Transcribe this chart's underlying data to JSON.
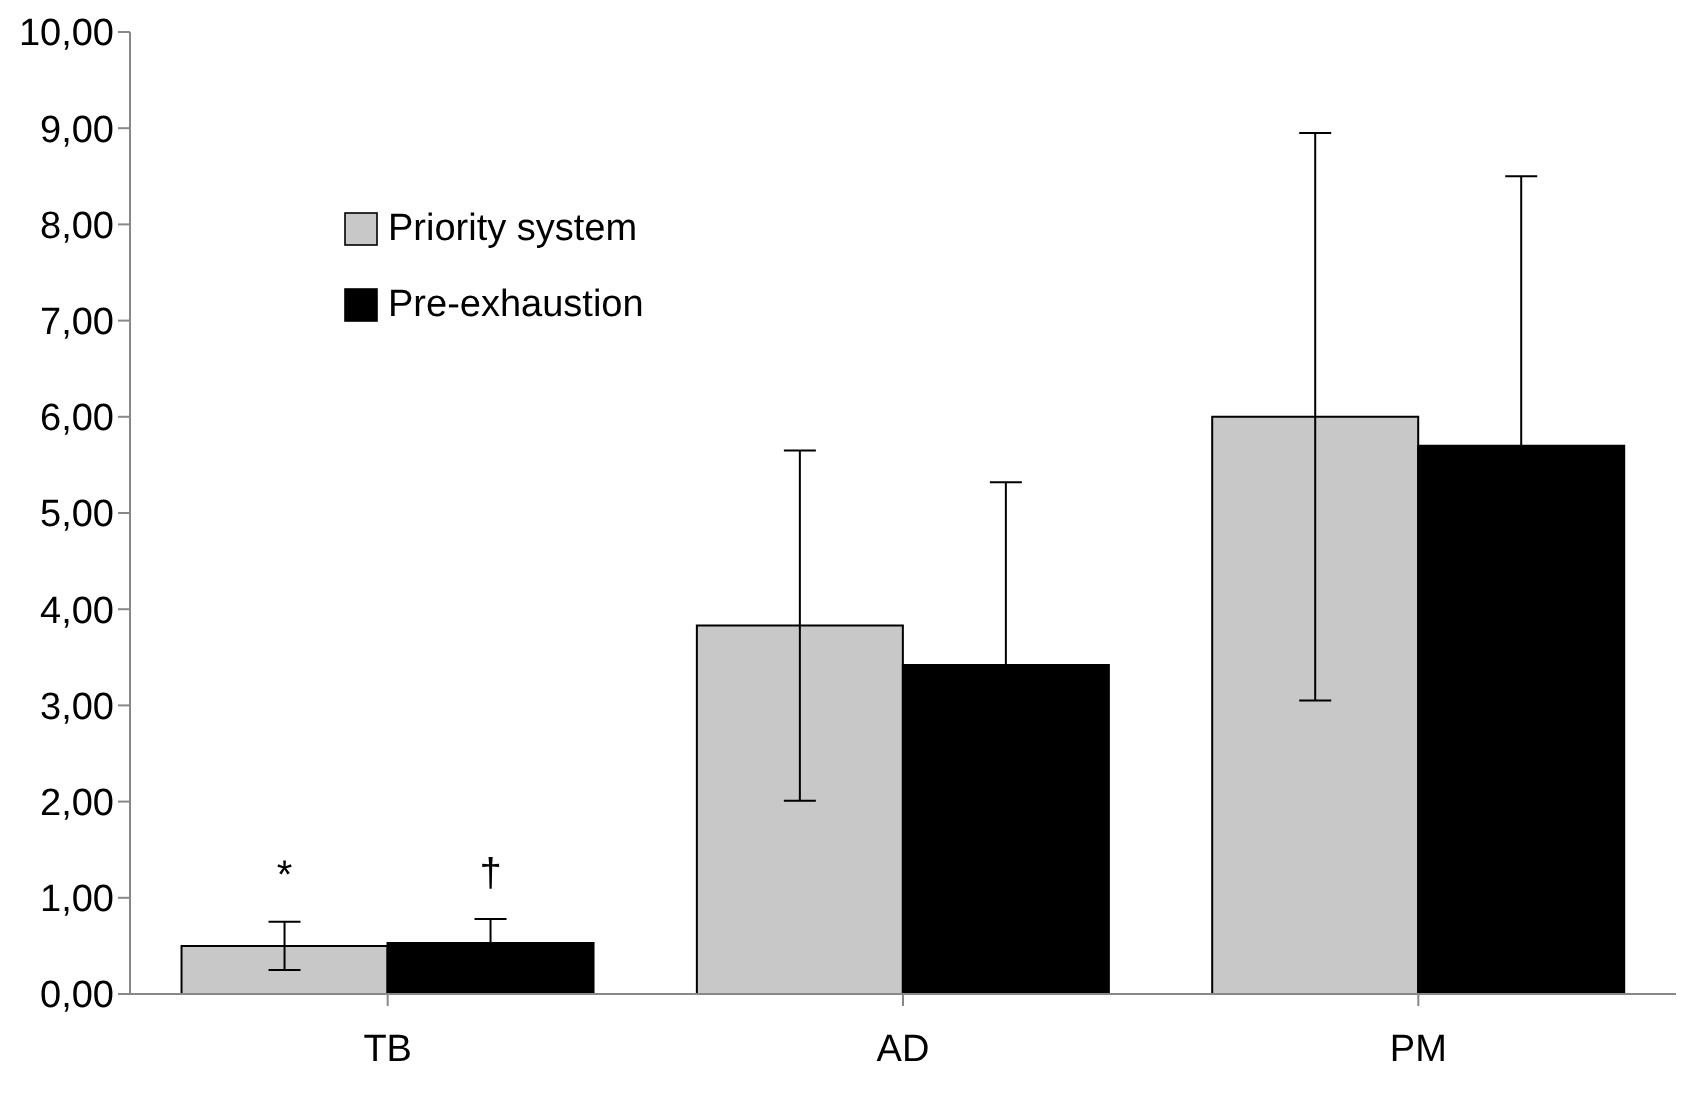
{
  "chart_data": {
    "type": "bar",
    "categories": [
      "TB",
      "AD",
      "PM"
    ],
    "series": [
      {
        "name": "Priority system",
        "color": "#c8c8c8",
        "values": [
          0.5,
          3.83,
          6.0
        ],
        "errors": [
          0.25,
          1.82,
          2.95
        ]
      },
      {
        "name": "Pre-exhaustion",
        "color": "#000000",
        "values": [
          0.53,
          3.42,
          5.7
        ],
        "errors": [
          0.25,
          1.9,
          2.8
        ]
      }
    ],
    "ylim": [
      0,
      10
    ],
    "yticks": [
      {
        "value": 0,
        "label": "0,00"
      },
      {
        "value": 1,
        "label": "1,00"
      },
      {
        "value": 2,
        "label": "2,00"
      },
      {
        "value": 3,
        "label": "3,00"
      },
      {
        "value": 4,
        "label": "4,00"
      },
      {
        "value": 5,
        "label": "5,00"
      },
      {
        "value": 6,
        "label": "6,00"
      },
      {
        "value": 7,
        "label": "7,00"
      },
      {
        "value": 8,
        "label": "8,00"
      },
      {
        "value": 9,
        "label": "9,00"
      },
      {
        "value": 10,
        "label": "10,00"
      }
    ],
    "annotations": [
      "*",
      "†"
    ],
    "legend": "top left",
    "grid": false
  }
}
